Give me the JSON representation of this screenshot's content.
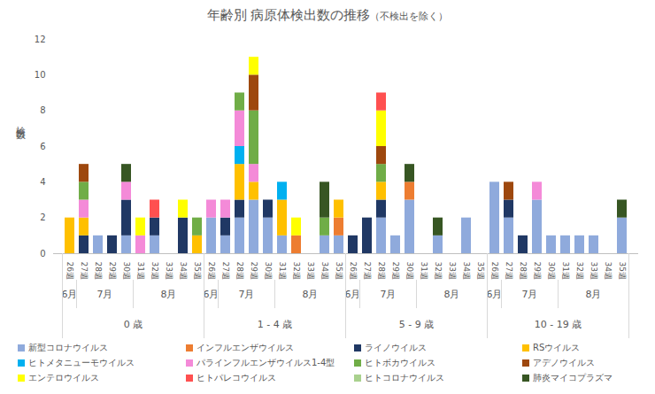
{
  "chart_data": {
    "type": "bar",
    "title": "年齢別 病原体検出数の推移",
    "subtitle": "（不検出を除く）",
    "ylabel": "検出数",
    "stacked": true,
    "grid": false,
    "legend": "bottom",
    "ylim": [
      0,
      12
    ],
    "yticks": [
      0,
      2,
      4,
      6,
      8,
      10,
      12
    ],
    "categories": [
      "26週",
      "27週",
      "28週",
      "29週",
      "30週",
      "31週",
      "32週",
      "33週",
      "34週",
      "35週",
      "26週",
      "27週",
      "28週",
      "29週",
      "30週",
      "31週",
      "32週",
      "33週",
      "34週",
      "35週",
      "26週",
      "27週",
      "28週",
      "29週",
      "30週",
      "31週",
      "32週",
      "33週",
      "34週",
      "35週",
      "26週",
      "27週",
      "28週",
      "29週",
      "30週",
      "31週",
      "32週",
      "33週",
      "34週",
      "35週"
    ],
    "groups": [
      {
        "label": "0 歳",
        "months": [
          {
            "label": "6月",
            "weeks": 1
          },
          {
            "label": "7月",
            "weeks": 4
          },
          {
            "label": "8月",
            "weeks": 5
          }
        ]
      },
      {
        "label": "1 - 4 歳",
        "months": [
          {
            "label": "6月",
            "weeks": 1
          },
          {
            "label": "7月",
            "weeks": 4
          },
          {
            "label": "8月",
            "weeks": 5
          }
        ]
      },
      {
        "label": "5 - 9 歳",
        "months": [
          {
            "label": "6月",
            "weeks": 1
          },
          {
            "label": "7月",
            "weeks": 4
          },
          {
            "label": "8月",
            "weeks": 5
          }
        ]
      },
      {
        "label": "10 - 19 歳",
        "months": [
          {
            "label": "6月",
            "weeks": 1
          },
          {
            "label": "7月",
            "weeks": 4
          },
          {
            "label": "8月",
            "weeks": 5
          }
        ]
      }
    ],
    "series": [
      {
        "name": "新型コロナウイルス",
        "color": "#8faadc",
        "values": [
          0,
          0,
          1,
          0,
          1,
          0,
          1,
          0,
          0,
          0,
          2,
          1,
          2,
          3,
          2,
          1,
          0,
          0,
          1,
          1,
          0,
          0,
          2,
          1,
          3,
          0,
          1,
          0,
          2,
          0,
          4,
          2,
          0,
          3,
          1,
          1,
          1,
          1,
          0,
          2
        ]
      },
      {
        "name": "インフルエンザウイルス",
        "color": "#ed7d31",
        "values": [
          0,
          0,
          0,
          0,
          0,
          0,
          0,
          0,
          0,
          0,
          0,
          0,
          0,
          0,
          0,
          0,
          1,
          0,
          0,
          1,
          0,
          0,
          0,
          0,
          1,
          0,
          0,
          0,
          0,
          0,
          0,
          0,
          0,
          0,
          0,
          0,
          0,
          0,
          0,
          0
        ]
      },
      {
        "name": "ライノウイルス",
        "color": "#203864",
        "values": [
          0,
          1,
          0,
          1,
          2,
          0,
          1,
          0,
          2,
          0,
          0,
          1,
          1,
          0,
          1,
          0,
          0,
          0,
          0,
          0,
          1,
          2,
          1,
          0,
          0,
          0,
          0,
          0,
          0,
          0,
          0,
          1,
          1,
          0,
          0,
          0,
          0,
          0,
          0,
          0
        ]
      },
      {
        "name": "RSウイルス",
        "color": "#ffc000",
        "values": [
          2,
          1,
          0,
          0,
          0,
          0,
          0,
          0,
          0,
          1,
          0,
          0,
          2,
          1,
          0,
          2,
          0,
          0,
          0,
          1,
          0,
          0,
          1,
          0,
          0,
          0,
          0,
          0,
          0,
          0,
          0,
          0,
          0,
          0,
          0,
          0,
          0,
          0,
          0,
          0
        ]
      },
      {
        "name": "ヒトメタニューモウイルス",
        "color": "#00b0f0",
        "values": [
          0,
          0,
          0,
          0,
          0,
          0,
          0,
          0,
          0,
          0,
          0,
          0,
          1,
          0,
          0,
          1,
          0,
          0,
          0,
          0,
          0,
          0,
          0,
          0,
          0,
          0,
          0,
          0,
          0,
          0,
          0,
          0,
          0,
          0,
          0,
          0,
          0,
          0,
          0,
          0
        ]
      },
      {
        "name": "パラインフルエンザウイルス1-4型",
        "color": "#f48ad8",
        "values": [
          0,
          1,
          0,
          0,
          1,
          1,
          0,
          0,
          0,
          0,
          1,
          1,
          2,
          1,
          0,
          0,
          0,
          0,
          0,
          0,
          0,
          0,
          0,
          0,
          0,
          0,
          0,
          0,
          0,
          0,
          0,
          0,
          0,
          1,
          0,
          0,
          0,
          0,
          0,
          0
        ]
      },
      {
        "name": "ヒトボカウイルス",
        "color": "#70ad47",
        "values": [
          0,
          1,
          0,
          0,
          0,
          0,
          0,
          0,
          0,
          1,
          0,
          0,
          1,
          3,
          0,
          0,
          0,
          0,
          1,
          0,
          0,
          0,
          1,
          0,
          0,
          0,
          0,
          0,
          0,
          0,
          0,
          0,
          0,
          0,
          0,
          0,
          0,
          0,
          0,
          0
        ]
      },
      {
        "name": "アデノウイルス",
        "color": "#9e480e",
        "values": [
          0,
          1,
          0,
          0,
          0,
          0,
          0,
          0,
          0,
          0,
          0,
          0,
          0,
          2,
          0,
          0,
          0,
          0,
          0,
          0,
          0,
          0,
          1,
          0,
          0,
          0,
          0,
          0,
          0,
          0,
          0,
          1,
          0,
          0,
          0,
          0,
          0,
          0,
          0,
          0
        ]
      },
      {
        "name": "エンテロウイルス",
        "color": "#ffff00",
        "values": [
          0,
          0,
          0,
          0,
          0,
          1,
          0,
          0,
          1,
          0,
          0,
          0,
          0,
          1,
          0,
          0,
          1,
          0,
          0,
          0,
          0,
          0,
          2,
          0,
          0,
          0,
          0,
          0,
          0,
          0,
          0,
          0,
          0,
          0,
          0,
          0,
          0,
          0,
          0,
          0
        ]
      },
      {
        "name": "ヒトパレコウイルス",
        "color": "#ff5050",
        "values": [
          0,
          0,
          0,
          0,
          0,
          0,
          1,
          0,
          0,
          0,
          0,
          0,
          0,
          0,
          0,
          0,
          0,
          0,
          0,
          0,
          0,
          0,
          1,
          0,
          0,
          0,
          0,
          0,
          0,
          0,
          0,
          0,
          0,
          0,
          0,
          0,
          0,
          0,
          0,
          0
        ]
      },
      {
        "name": "ヒトコロナウイルス",
        "color": "#a9d18e",
        "values": [
          0,
          0,
          0,
          0,
          0,
          0,
          0,
          0,
          0,
          0,
          0,
          0,
          0,
          0,
          0,
          0,
          0,
          0,
          0,
          0,
          0,
          0,
          0,
          0,
          0,
          0,
          0,
          0,
          0,
          0,
          0,
          0,
          0,
          0,
          0,
          0,
          0,
          0,
          0,
          0
        ]
      },
      {
        "name": "肺炎マイコプラズマ",
        "color": "#375623",
        "values": [
          0,
          0,
          0,
          0,
          1,
          0,
          0,
          0,
          0,
          0,
          0,
          0,
          0,
          0,
          0,
          0,
          0,
          0,
          2,
          0,
          0,
          0,
          0,
          0,
          1,
          0,
          1,
          0,
          0,
          0,
          0,
          0,
          0,
          0,
          0,
          0,
          0,
          0,
          0,
          1
        ]
      }
    ]
  }
}
